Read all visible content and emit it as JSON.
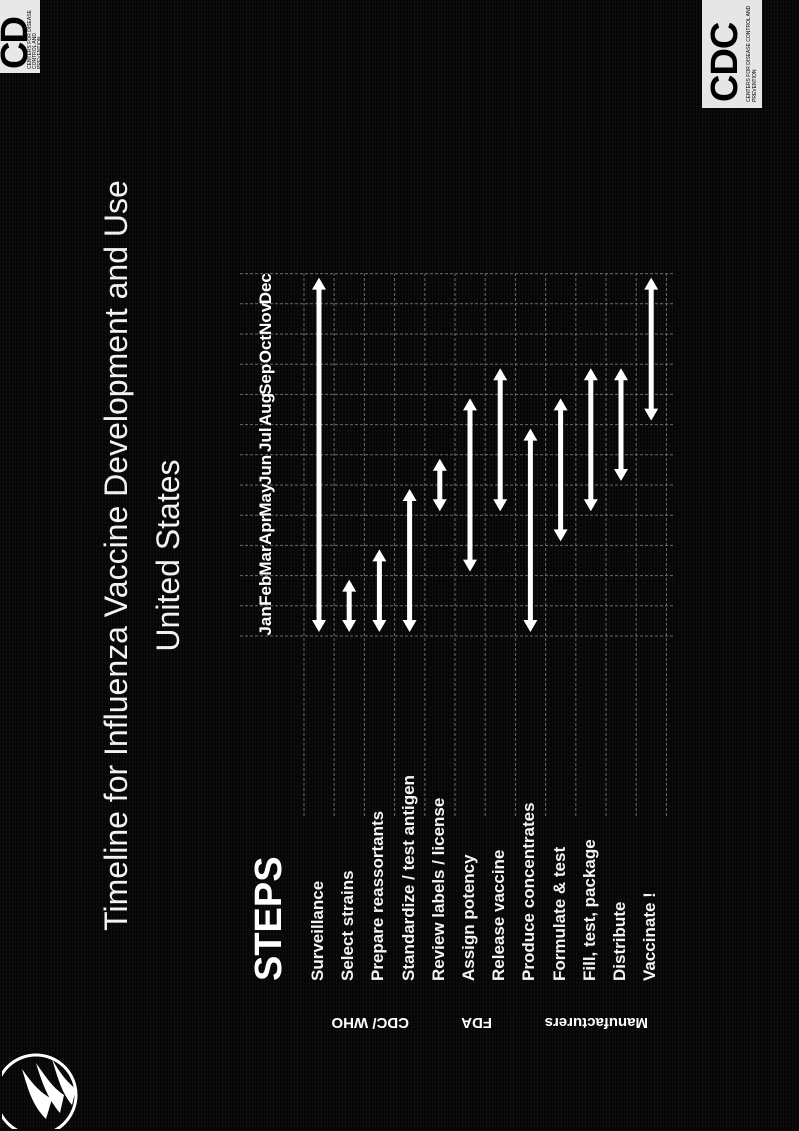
{
  "title_line1": "Timeline for Influenza Vaccine Development and Use",
  "title_line2": "United States",
  "steps_heading": "STEPS",
  "groups": [
    {
      "label": "CDC/ WHO"
    },
    {
      "label": "FDA"
    },
    {
      "label": "Manufacturers"
    }
  ],
  "logo_top": {
    "text": "CD",
    "small": "CENTERS FOR DISEASE CONTROL AND PREVENTION"
  },
  "logo_bottom": {
    "text": "CDC",
    "small": "CENTERS FOR DISEASE CONTROL AND PREVENTION"
  },
  "months": [
    "Jan",
    "Feb",
    "Mar",
    "Apr",
    "May",
    "Jun",
    "Jul",
    "Aug",
    "Sep",
    "Oct",
    "Nov",
    "Dec"
  ],
  "steps": [
    {
      "label": "Surveillance",
      "start_month": 1,
      "end_month": 12
    },
    {
      "label": "Select strains",
      "start_month": 1,
      "end_month": 2
    },
    {
      "label": "Prepare reassortants",
      "start_month": 1,
      "end_month": 3
    },
    {
      "label": "Standardize / test antigen",
      "start_month": 1,
      "end_month": 5
    },
    {
      "label": "Review labels  /  license",
      "start_month": 5,
      "end_month": 6
    },
    {
      "label": "Assign potency",
      "start_month": 3,
      "end_month": 8
    },
    {
      "label": "Release vaccine",
      "start_month": 5,
      "end_month": 9
    },
    {
      "label": "Produce concentrates",
      "start_month": 1,
      "end_month": 7
    },
    {
      "label": "Formulate & test",
      "start_month": 4,
      "end_month": 8
    },
    {
      "label": "Fill, test, package",
      "start_month": 5,
      "end_month": 9
    },
    {
      "label": "Distribute",
      "start_month": 6,
      "end_month": 9
    },
    {
      "label": "Vaccinate !",
      "start_month": 8,
      "end_month": 12
    }
  ],
  "colors": {
    "background": "#050505",
    "text": "#ffffff",
    "bar": "#ffffff",
    "grid": "#6a6a6a"
  }
}
